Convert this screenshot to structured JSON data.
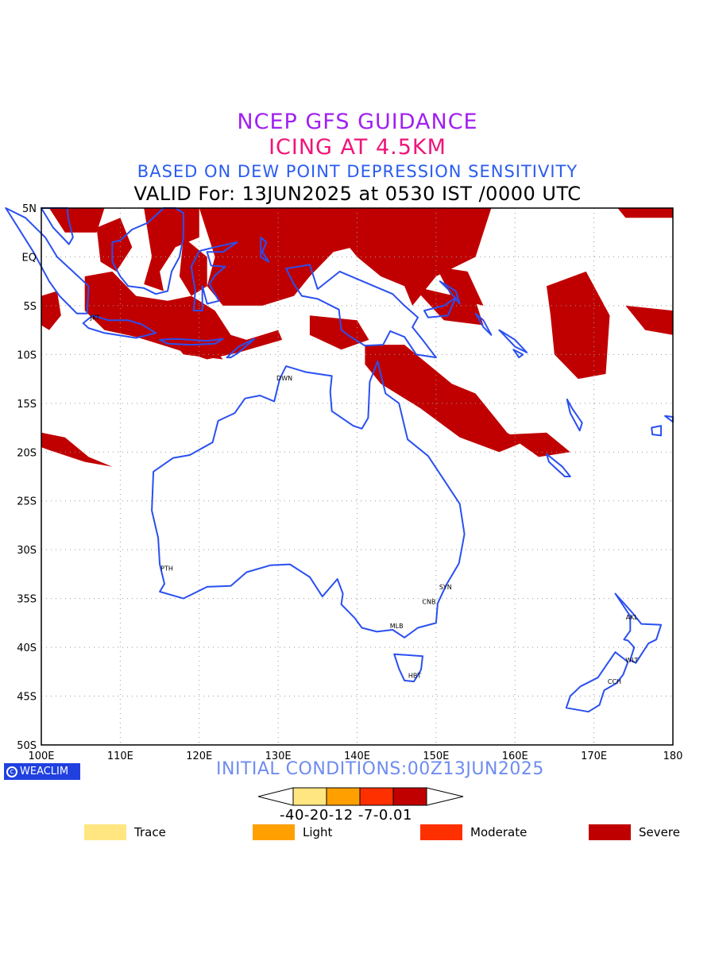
{
  "header": {
    "line1": "NCEP GFS GUIDANCE",
    "line2": "ICING AT 4.5KM",
    "line3": "BASED ON DEW POINT DEPRESSION SENSITIVITY",
    "line4": "VALID For: 13JUN2025 at 0530 IST /0000 UTC"
  },
  "map": {
    "lon_range": [
      100,
      180
    ],
    "lat_range": [
      -50,
      5
    ],
    "lon_ticks": [
      "100E",
      "110E",
      "120E",
      "130E",
      "140E",
      "150E",
      "160E",
      "170E",
      "180"
    ],
    "lat_ticks": [
      "5N",
      "EQ",
      "5S",
      "10S",
      "15S",
      "20S",
      "25S",
      "30S",
      "35S",
      "40S",
      "45S",
      "50S"
    ],
    "colors": {
      "coast": "#2a50f0",
      "severe": "#c00000",
      "grid": "#999999"
    },
    "stations": [
      {
        "label": "JKT",
        "lon": 106.8,
        "lat": -6.2
      },
      {
        "label": "DWN",
        "lon": 130.8,
        "lat": -12.4
      },
      {
        "label": "PTH",
        "lon": 115.9,
        "lat": -31.9
      },
      {
        "label": "SYN",
        "lon": 151.2,
        "lat": -33.8
      },
      {
        "label": "CNB",
        "lon": 149.1,
        "lat": -35.3
      },
      {
        "label": "MLB",
        "lon": 145.0,
        "lat": -37.8
      },
      {
        "label": "HBT",
        "lon": 147.3,
        "lat": -42.9
      },
      {
        "label": "AKL",
        "lon": 174.8,
        "lat": -36.9
      },
      {
        "label": "WLT",
        "lon": 174.8,
        "lat": -41.3
      },
      {
        "label": "CCH",
        "lon": 172.6,
        "lat": -43.5
      }
    ]
  },
  "footer": {
    "initial_conditions": "INITIAL CONDITIONS:00Z13JUN2025",
    "brand": "WEACLIM",
    "colorbar_labels": "-40-20-12 -7-0.01",
    "colorbar_colors": [
      "#ffe680",
      "#ffa000",
      "#ff3000",
      "#c00000"
    ],
    "legend": [
      {
        "label": "Trace",
        "color": "#ffe680"
      },
      {
        "label": "Light",
        "color": "#ffa000"
      },
      {
        "label": "Moderate",
        "color": "#ff3000"
      },
      {
        "label": "Severe",
        "color": "#c00000"
      }
    ]
  }
}
